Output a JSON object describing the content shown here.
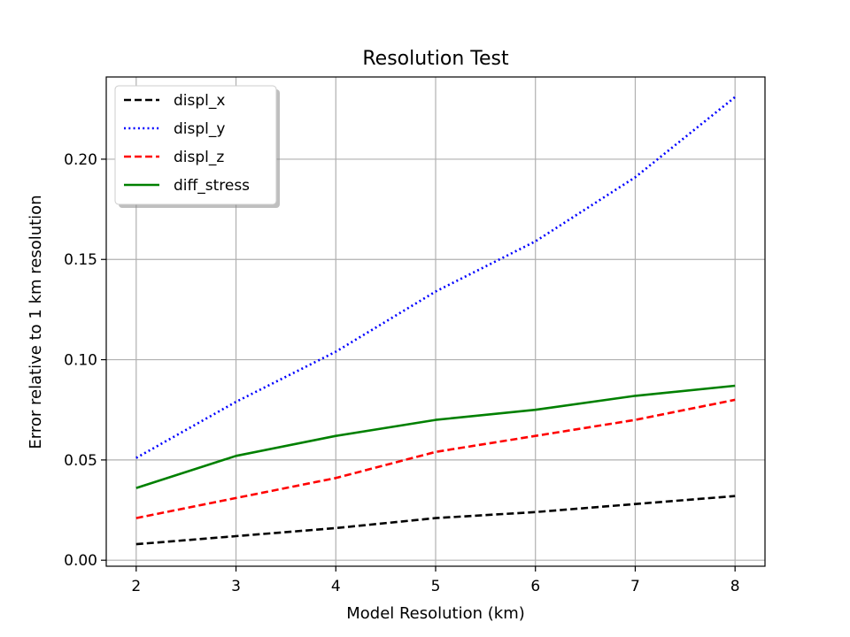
{
  "chart_data": {
    "type": "line",
    "title": "Resolution Test",
    "xlabel": "Model Resolution (km)",
    "ylabel": "Error relative to 1 km resolution",
    "x": [
      2,
      3,
      4,
      5,
      6,
      7,
      8
    ],
    "xlim": [
      1.7,
      8.3
    ],
    "ylim": [
      -0.003,
      0.241
    ],
    "xticks": [
      2,
      3,
      4,
      5,
      6,
      7,
      8
    ],
    "xtick_labels": [
      "2",
      "3",
      "4",
      "5",
      "6",
      "7",
      "8"
    ],
    "yticks": [
      0.0,
      0.05,
      0.1,
      0.15,
      0.2
    ],
    "ytick_labels": [
      "0.00",
      "0.05",
      "0.10",
      "0.15",
      "0.20"
    ],
    "grid": true,
    "legend_position": "top-left",
    "series": [
      {
        "name": "displ_x",
        "color": "#000000",
        "style": "dashed",
        "values": [
          0.008,
          0.012,
          0.016,
          0.021,
          0.024,
          0.028,
          0.032
        ]
      },
      {
        "name": "displ_y",
        "color": "#0000ff",
        "style": "dotted",
        "values": [
          0.051,
          0.079,
          0.104,
          0.134,
          0.159,
          0.191,
          0.231
        ]
      },
      {
        "name": "displ_z",
        "color": "#ff0000",
        "style": "dashed",
        "values": [
          0.021,
          0.031,
          0.041,
          0.054,
          0.062,
          0.07,
          0.08
        ]
      },
      {
        "name": "diff_stress",
        "color": "#008000",
        "style": "solid",
        "values": [
          0.036,
          0.052,
          0.062,
          0.07,
          0.075,
          0.082,
          0.087
        ]
      }
    ]
  }
}
